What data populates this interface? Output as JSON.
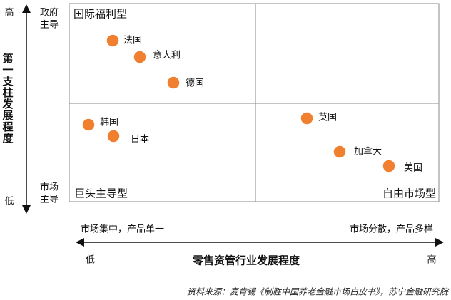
{
  "vertical_axis": {
    "title": "第一支柱发展程度",
    "high": "高",
    "low": "低",
    "top_label": [
      "政府",
      "主导"
    ],
    "bottom_label": [
      "市场",
      "主导"
    ]
  },
  "horizontal_axis": {
    "title": "零售资管行业发展程度",
    "low": "低",
    "high": "高",
    "left_label": "市场集中，产品单一",
    "right_label": "市场分散，产品多样"
  },
  "quadrants": [
    "国际福利型",
    "巨头主导型",
    "自由市场型"
  ],
  "points": [
    "法国",
    "意大利",
    "德国",
    "韩国",
    "日本",
    "英国",
    "加拿大",
    "美国"
  ],
  "source": "资料来源：麦肯锡《制胜中国养老金融市场白皮书》，苏宁金融研究院"
}
